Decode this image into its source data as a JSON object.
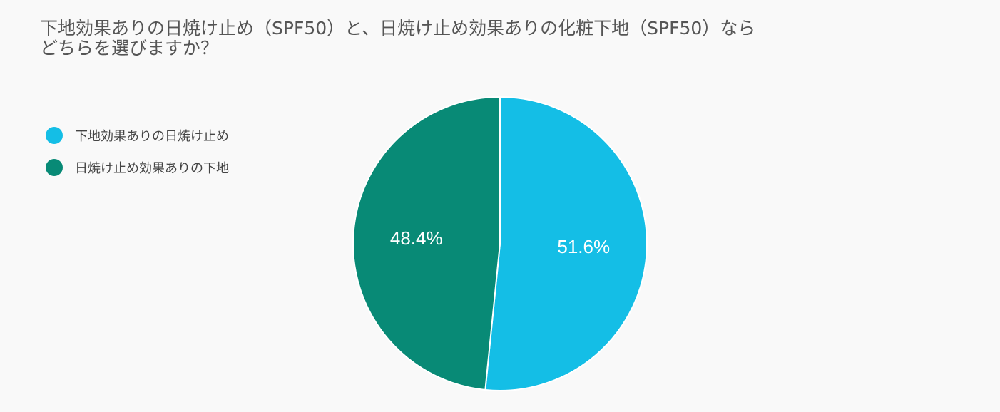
{
  "chart_data": {
    "type": "pie",
    "title_lines": [
      "下地効果ありの日焼け止め（SPF50）と、日焼け止め効果ありの化粧下地（SPF50）なら",
      "どちらを選びますか？"
    ],
    "categories": [
      "下地効果ありの日焼け止め",
      "日焼け止め効果ありの下地"
    ],
    "values": [
      51.6,
      48.4
    ],
    "labels": [
      "51.6%",
      "48.4%"
    ],
    "colors": [
      "#14bee6",
      "#088a76"
    ],
    "legend_position": "left"
  }
}
